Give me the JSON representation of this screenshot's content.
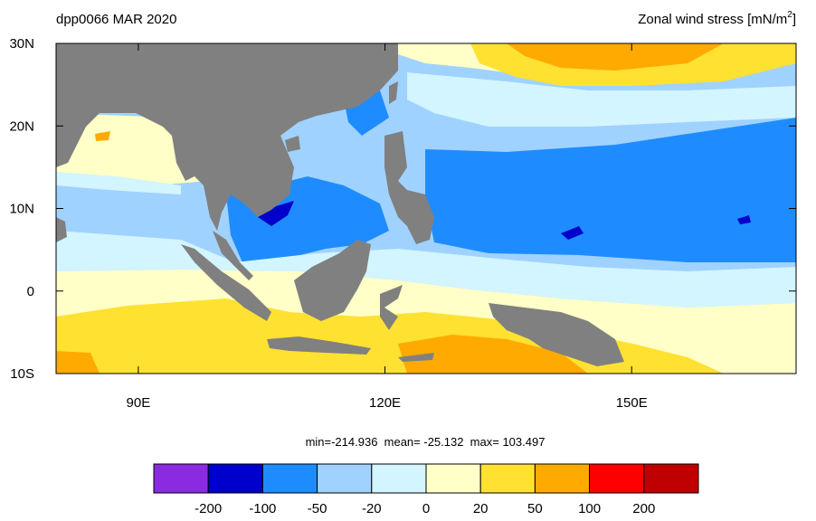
{
  "map": {
    "title_left": "dpp0066 MAR 2020",
    "title_right": {
      "text": "Zonal wind stress [mN/m",
      "sup": "2",
      "end": "]"
    },
    "lon_range": [
      80,
      170
    ],
    "lat_range": [
      -10,
      30
    ],
    "lon_ticks": [
      {
        "value": 90,
        "label": "90E"
      },
      {
        "value": 120,
        "label": "120E"
      },
      {
        "value": 150,
        "label": "150E"
      }
    ],
    "lat_ticks": [
      {
        "value": 30,
        "label": "30N"
      },
      {
        "value": 20,
        "label": "20N"
      },
      {
        "value": 10,
        "label": "10N"
      },
      0,
      {
        "value": -10,
        "label": "10S"
      }
    ],
    "stats": "min=-214.936  mean= -25.132  max= 103.497",
    "colorbar": {
      "levels": [
        -200,
        -100,
        -50,
        -20,
        0,
        20,
        50,
        100,
        200
      ],
      "colors": [
        "#8a2be2",
        "#0000cd",
        "#1e8cff",
        "#a0d2ff",
        "#d2f5ff",
        "#ffffc8",
        "#ffe132",
        "#ffaa00",
        "#ff0000",
        "#c00000"
      ]
    }
  }
}
